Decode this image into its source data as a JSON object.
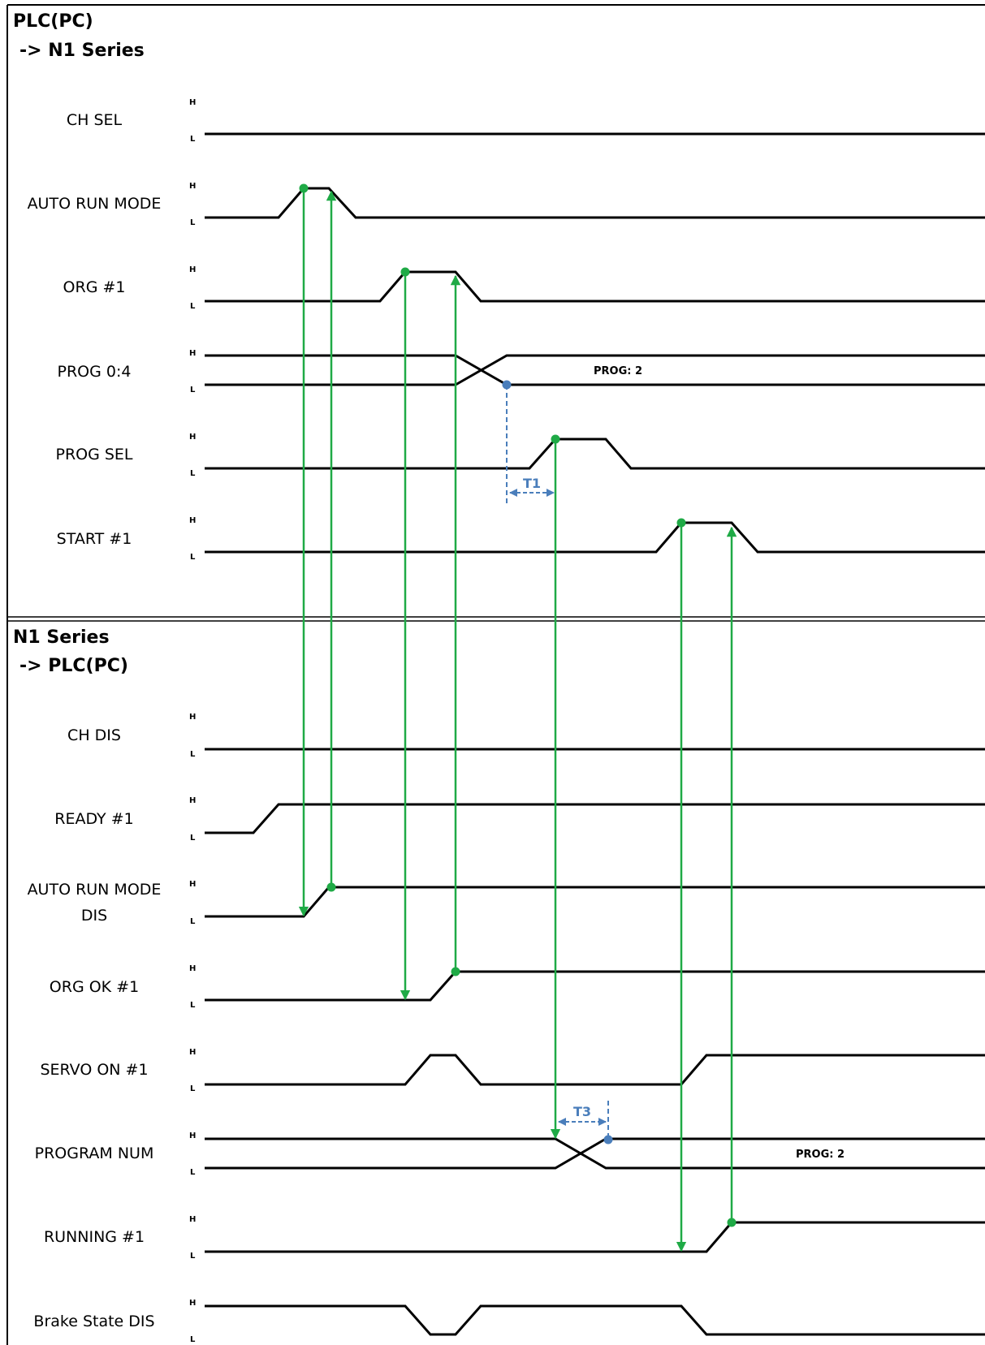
{
  "sections": [
    {
      "title_line1": "PLC(PC)",
      "title_line2": "-> N1 Series"
    },
    {
      "title_line1": "N1 Series",
      "title_line2": "-> PLC(PC)"
    }
  ],
  "level_high": "H",
  "level_low": "L",
  "signals": [
    {
      "label": "CH SEL"
    },
    {
      "label": "AUTO RUN MODE"
    },
    {
      "label": "ORG #1"
    },
    {
      "label": "PROG 0:4",
      "value": "PROG: 2"
    },
    {
      "label": "PROG SEL"
    },
    {
      "label": "START #1"
    },
    {
      "label": "CH DIS"
    },
    {
      "label": "READY #1"
    },
    {
      "label": "AUTO RUN MODE",
      "label2": "DIS"
    },
    {
      "label": "ORG OK #1"
    },
    {
      "label": "SERVO ON #1"
    },
    {
      "label": "PROGRAM NUM",
      "value": "PROG: 2"
    },
    {
      "label": "RUNNING #1"
    },
    {
      "label": "Brake State DIS"
    }
  ],
  "timing": {
    "t1": "T1",
    "t3": "T3"
  },
  "colors": {
    "arrow": "#1faa46",
    "timing": "#4a7ebb",
    "wave": "#000000"
  }
}
